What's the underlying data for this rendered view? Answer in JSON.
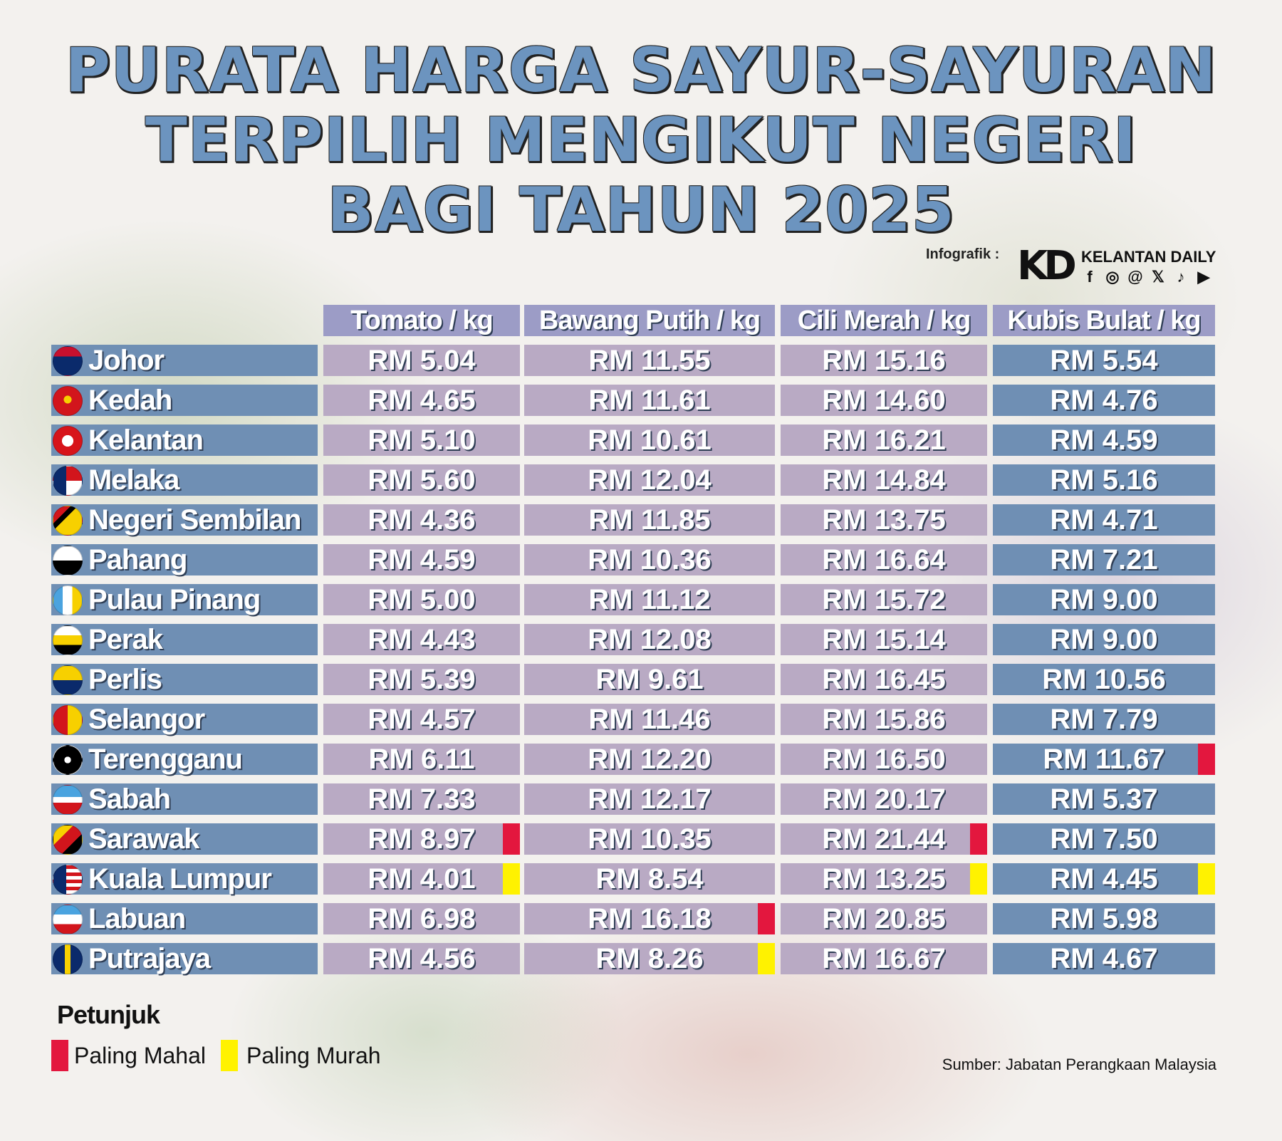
{
  "title": {
    "line1": "PURATA HARGA SAYUR-SAYURAN",
    "line2": "TERPILIH MENGIKUT NEGERI",
    "line3": "BAGI TAHUN 2025"
  },
  "credit": {
    "label": "Infografik :",
    "logo": "KD",
    "brand": "KELANTAN DAILY",
    "social_icons": [
      "facebook-icon",
      "instagram-icon",
      "threads-icon",
      "x-icon",
      "tiktok-icon",
      "youtube-icon"
    ]
  },
  "columns": [
    "Tomato / kg",
    "Bawang Putih / kg",
    "Cili Merah / kg",
    "Kubis Bulat / kg"
  ],
  "rows": [
    {
      "state": "Johor",
      "prices": [
        "RM 5.04",
        "RM 11.55",
        "RM 15.16",
        "RM 5.54"
      ],
      "marks": [
        "",
        "",
        "",
        ""
      ]
    },
    {
      "state": "Kedah",
      "prices": [
        "RM 4.65",
        "RM 11.61",
        "RM 14.60",
        "RM 4.76"
      ],
      "marks": [
        "",
        "",
        "",
        ""
      ]
    },
    {
      "state": "Kelantan",
      "prices": [
        "RM 5.10",
        "RM 10.61",
        "RM 16.21",
        "RM 4.59"
      ],
      "marks": [
        "",
        "",
        "",
        ""
      ]
    },
    {
      "state": "Melaka",
      "prices": [
        "RM 5.60",
        "RM 12.04",
        "RM 14.84",
        "RM 5.16"
      ],
      "marks": [
        "",
        "",
        "",
        ""
      ]
    },
    {
      "state": "Negeri Sembilan",
      "prices": [
        "RM 4.36",
        "RM 11.85",
        "RM 13.75",
        "RM 4.71"
      ],
      "marks": [
        "",
        "",
        "",
        ""
      ]
    },
    {
      "state": "Pahang",
      "prices": [
        "RM 4.59",
        "RM 10.36",
        "RM 16.64",
        "RM 7.21"
      ],
      "marks": [
        "",
        "",
        "",
        ""
      ]
    },
    {
      "state": "Pulau Pinang",
      "prices": [
        "RM 5.00",
        "RM 11.12",
        "RM 15.72",
        "RM 9.00"
      ],
      "marks": [
        "",
        "",
        "",
        ""
      ]
    },
    {
      "state": "Perak",
      "prices": [
        "RM 4.43",
        "RM 12.08",
        "RM 15.14",
        "RM 9.00"
      ],
      "marks": [
        "",
        "",
        "",
        ""
      ]
    },
    {
      "state": "Perlis",
      "prices": [
        "RM 5.39",
        "RM 9.61",
        "RM 16.45",
        "RM 10.56"
      ],
      "marks": [
        "",
        "",
        "",
        ""
      ]
    },
    {
      "state": "Selangor",
      "prices": [
        "RM 4.57",
        "RM 11.46",
        "RM 15.86",
        "RM 7.79"
      ],
      "marks": [
        "",
        "",
        "",
        ""
      ]
    },
    {
      "state": "Terengganu",
      "prices": [
        "RM 6.11",
        "RM 12.20",
        "RM 16.50",
        "RM 11.67"
      ],
      "marks": [
        "",
        "",
        "",
        "mahal"
      ]
    },
    {
      "state": "Sabah",
      "prices": [
        "RM 7.33",
        "RM 12.17",
        "RM 20.17",
        "RM 5.37"
      ],
      "marks": [
        "",
        "",
        "",
        ""
      ]
    },
    {
      "state": "Sarawak",
      "prices": [
        "RM 8.97",
        "RM 10.35",
        "RM 21.44",
        "RM 7.50"
      ],
      "marks": [
        "mahal",
        "",
        "mahal",
        ""
      ]
    },
    {
      "state": "Kuala Lumpur",
      "prices": [
        "RM 4.01",
        "RM 8.54",
        "RM 13.25",
        "RM 4.45"
      ],
      "marks": [
        "murah",
        "",
        "murah",
        "murah"
      ]
    },
    {
      "state": "Labuan",
      "prices": [
        "RM 6.98",
        "RM 16.18",
        "RM 20.85",
        "RM 5.98"
      ],
      "marks": [
        "",
        "mahal",
        "",
        ""
      ]
    },
    {
      "state": "Putrajaya",
      "prices": [
        "RM 4.56",
        "RM 8.26",
        "RM 16.67",
        "RM 4.67"
      ],
      "marks": [
        "",
        "murah",
        "",
        ""
      ]
    }
  ],
  "legend": {
    "title": "Petunjuk",
    "mahal_label": "Paling Mahal",
    "murah_label": "Paling Murah",
    "mahal_color": "#e3173e",
    "murah_color": "#fff200"
  },
  "source": "Sumber: Jabatan Perangkaan Malaysia",
  "colors": {
    "title": "#6c94bf",
    "row_blue": "#6f8fb4",
    "row_purple": "#b9aac4",
    "header": "#9c9cc6"
  }
}
